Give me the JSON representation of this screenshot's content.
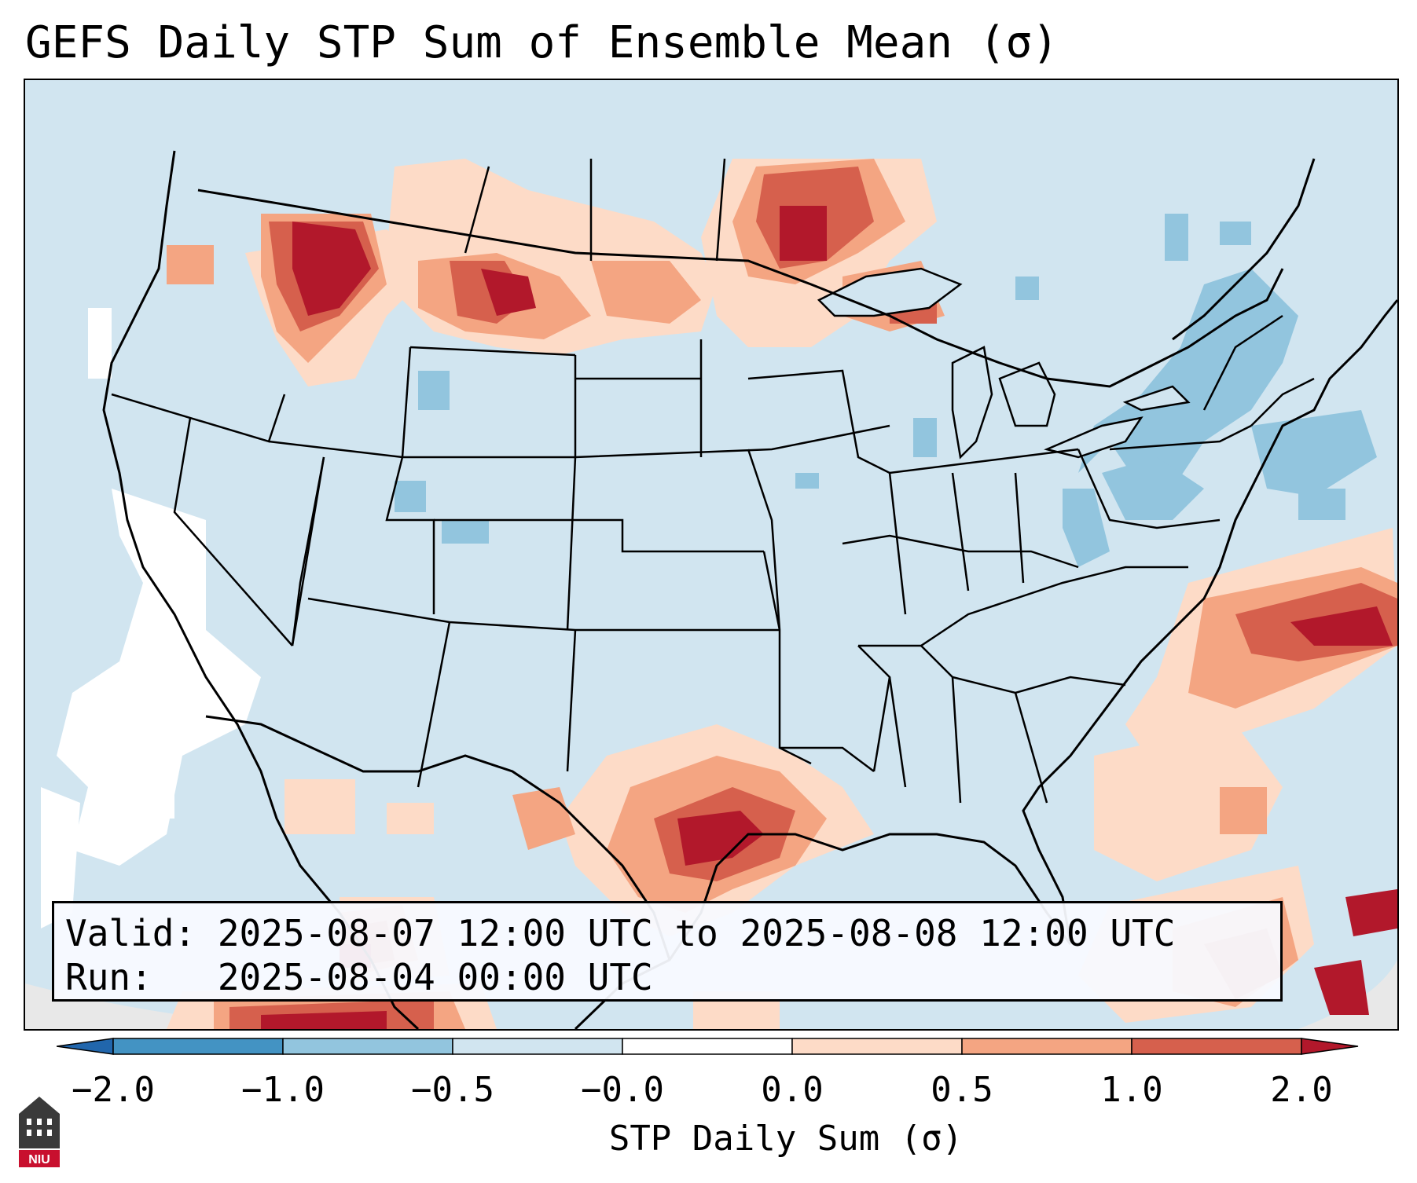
{
  "title": "GEFS Daily STP Sum of Ensemble Mean (σ)",
  "info": {
    "valid": "Valid: 2025-08-07 12:00 UTC to 2025-08-08 12:00 UTC",
    "run": "Run:   2025-08-04 00:00 UTC"
  },
  "colorbar": {
    "label": "STP Daily Sum (σ)",
    "ticks": [
      "−2.0",
      "−1.0",
      "−0.5",
      "−0.0",
      "0.0",
      "0.5",
      "1.0",
      "2.0"
    ],
    "bins": [
      {
        "range": "< -2.0",
        "color": "#2166ac"
      },
      {
        "range": "-2.0 to -1.0",
        "color": "#4393c3"
      },
      {
        "range": "-1.0 to -0.5",
        "color": "#92c5de"
      },
      {
        "range": "-0.5 to -0.0",
        "color": "#d1e5f0"
      },
      {
        "range": "-0.0 to 0.0",
        "color": "#ffffff"
      },
      {
        "range": "0.0 to 0.5",
        "color": "#fddbc7"
      },
      {
        "range": "0.5 to 1.0",
        "color": "#f4a582"
      },
      {
        "range": "1.0 to 2.0",
        "color": "#d6604d"
      },
      {
        "range": "> 2.0",
        "color": "#b2182b"
      }
    ]
  },
  "logo": {
    "text": "NIU"
  },
  "colors": {
    "background": "#d1e5f0",
    "positive_max": "#b2182b",
    "negative_mid": "#92c5de"
  }
}
